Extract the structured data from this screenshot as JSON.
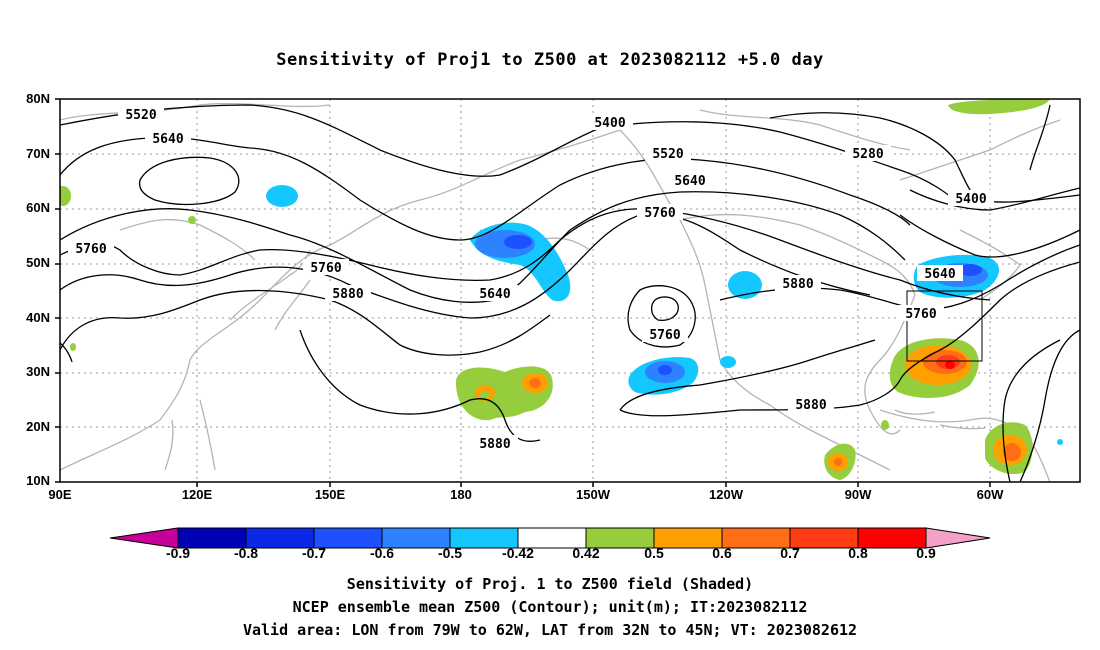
{
  "title": "Sensitivity of Proj1 to Z500 at 2023082112 +5.0 day",
  "lat_labels": [
    "80N",
    "70N",
    "60N",
    "50N",
    "40N",
    "30N",
    "20N",
    "10N"
  ],
  "lon_labels": [
    "90E",
    "120E",
    "150E",
    "180",
    "150W",
    "120W",
    "90W",
    "60W"
  ],
  "contour_labels": [
    "5520",
    "5640",
    "5400",
    "5520",
    "5640",
    "5760",
    "5280",
    "5400",
    "5760",
    "5760",
    "5880",
    "5640",
    "5760",
    "5880",
    "5880",
    "5640",
    "5760",
    "5880"
  ],
  "colorbar": {
    "labels": [
      "-0.9",
      "-0.8",
      "-0.7",
      "-0.6",
      "-0.5",
      "-0.42",
      "0.42",
      "0.5",
      "0.6",
      "0.7",
      "0.8",
      "0.9"
    ],
    "colors": [
      "#c8009a",
      "#0000b4",
      "#0a28e6",
      "#1e50ff",
      "#2c82ff",
      "#14c8ff",
      "#ffffff",
      "#96cd3c",
      "#ffa000",
      "#ff6e14",
      "#ff3c14",
      "#ff0000",
      "#f5a0c8"
    ]
  },
  "captions": [
    "Sensitivity of Proj. 1 to Z500 field (Shaded)",
    "NCEP ensemble mean Z500 (Contour); unit(m); IT:2023082112",
    "Valid area: LON from 79W to 62W, LAT from 32N to 45N; VT: 2023082612"
  ]
}
